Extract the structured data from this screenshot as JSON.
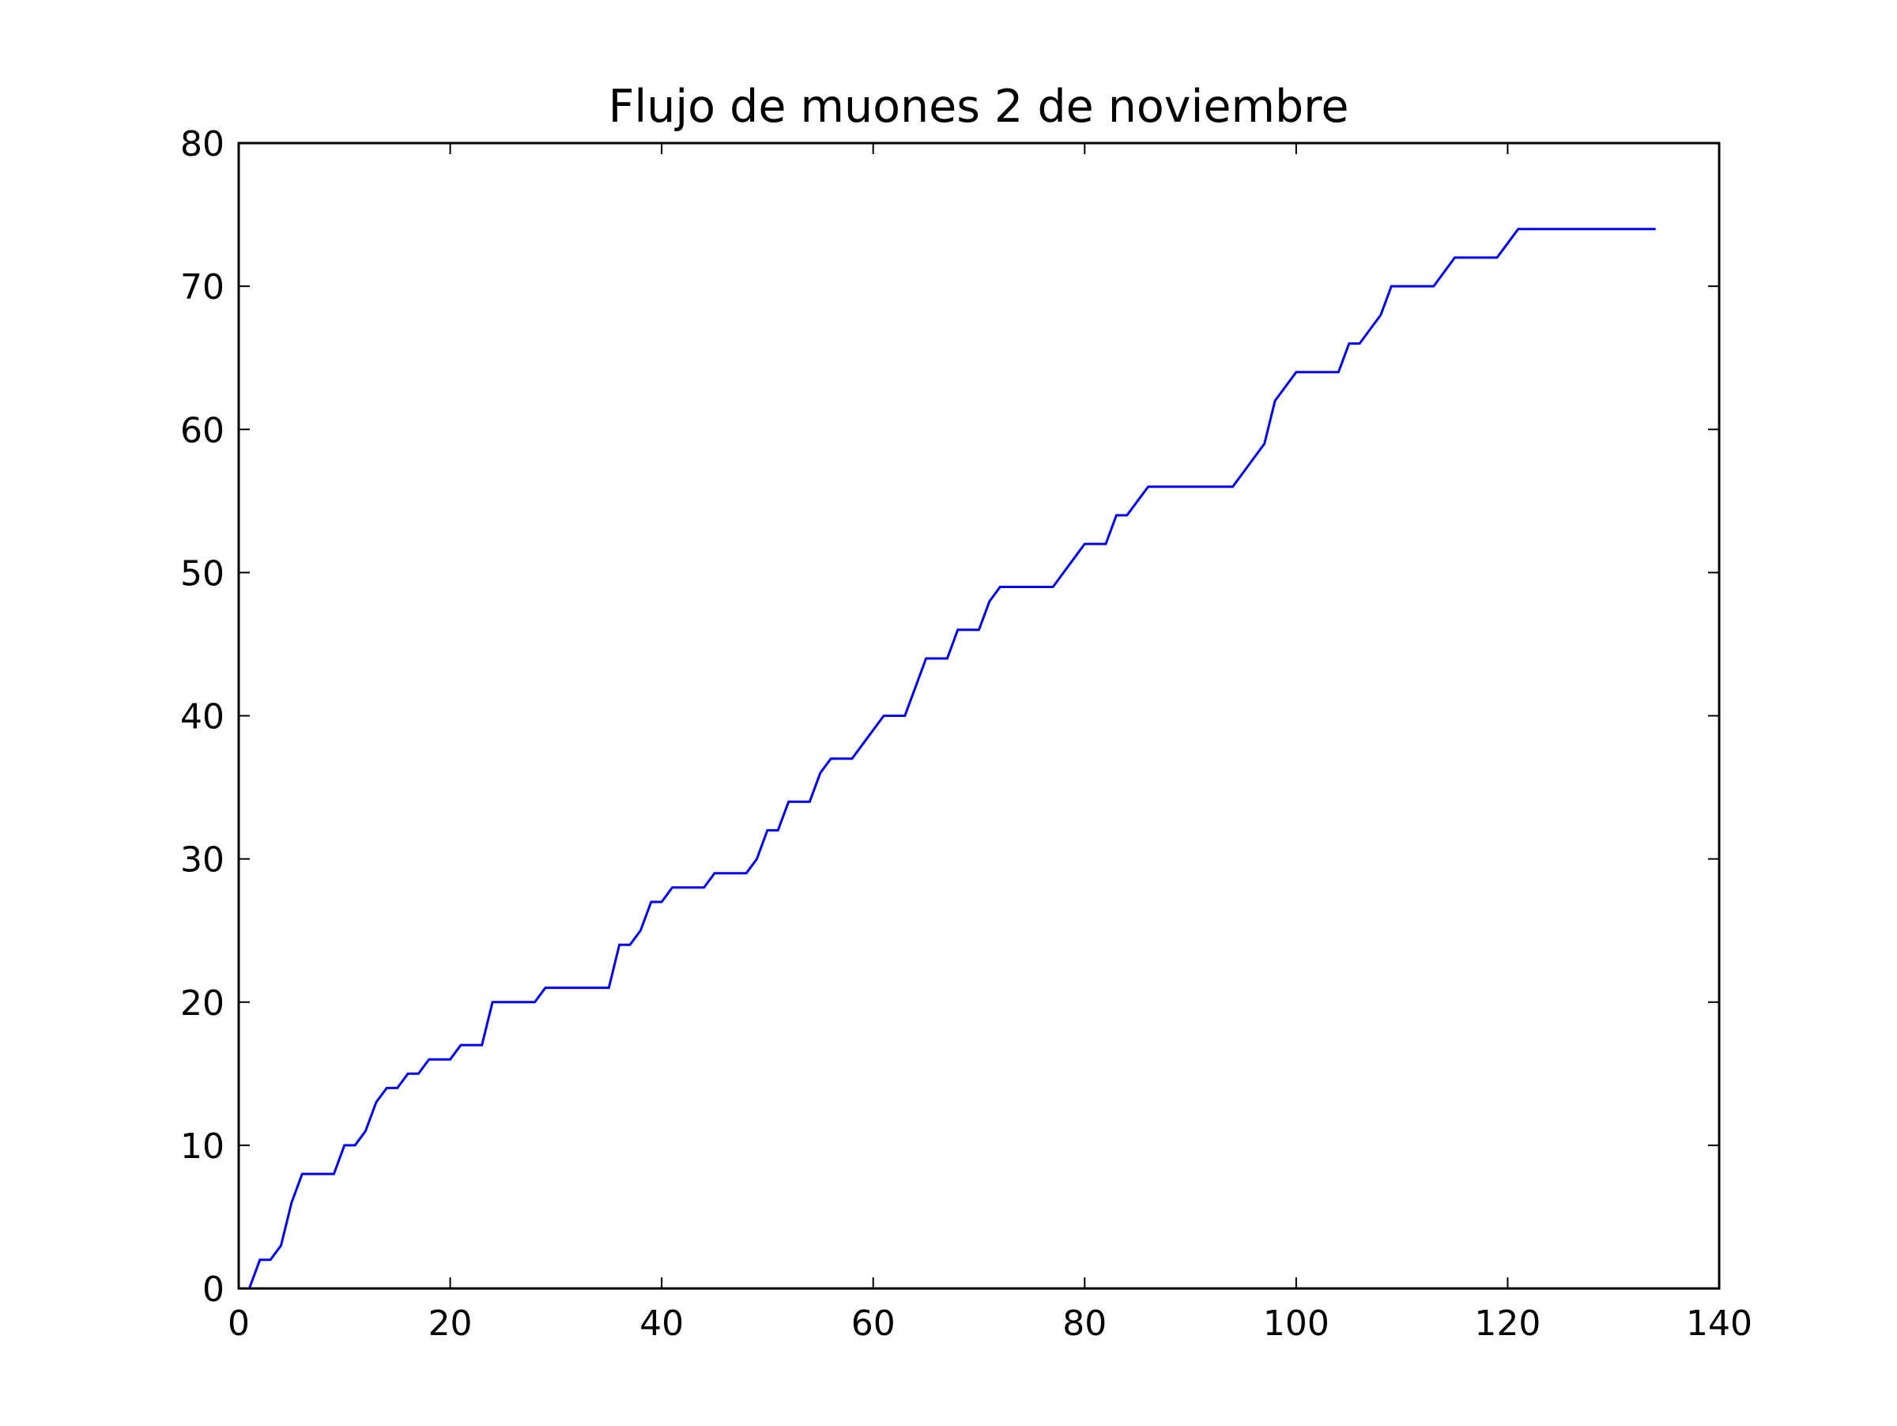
{
  "chart_data": {
    "type": "line",
    "title": "Flujo de muones 2 de noviembre",
    "xlabel": "",
    "ylabel": "",
    "xlim": [
      0,
      140
    ],
    "ylim": [
      0,
      80
    ],
    "xticks": [
      0,
      20,
      40,
      60,
      80,
      100,
      120,
      140
    ],
    "yticks": [
      0,
      10,
      20,
      30,
      40,
      50,
      60,
      70,
      80
    ],
    "xtick_labels": [
      "0",
      "20",
      "40",
      "60",
      "80",
      "100",
      "120",
      "140"
    ],
    "ytick_labels": [
      "0",
      "10",
      "20",
      "30",
      "40",
      "50",
      "60",
      "70",
      "80"
    ],
    "grid": false,
    "legend": "none",
    "series": [
      {
        "color": "#0000ff",
        "x": [
          1,
          2,
          3,
          4,
          5,
          6,
          7,
          8,
          9,
          10,
          11,
          12,
          13,
          14,
          15,
          16,
          17,
          18,
          19,
          20,
          21,
          22,
          23,
          24,
          25,
          26,
          27,
          28,
          29,
          30,
          31,
          32,
          33,
          34,
          35,
          36,
          37,
          38,
          39,
          40,
          41,
          42,
          43,
          44,
          45,
          46,
          47,
          48,
          49,
          50,
          51,
          52,
          53,
          54,
          55,
          56,
          57,
          58,
          59,
          60,
          61,
          62,
          63,
          64,
          65,
          66,
          67,
          68,
          69,
          70,
          71,
          72,
          73,
          74,
          75,
          76,
          77,
          78,
          79,
          80,
          81,
          82,
          83,
          84,
          85,
          86,
          87,
          88,
          89,
          90,
          91,
          92,
          93,
          94,
          95,
          96,
          97,
          98,
          99,
          100,
          101,
          102,
          103,
          104,
          105,
          106,
          107,
          108,
          109,
          110,
          111,
          112,
          113,
          114,
          115,
          116,
          117,
          118,
          119,
          120,
          121,
          122,
          123,
          124,
          125,
          126,
          127,
          128,
          129,
          130,
          131,
          132,
          133,
          134
        ],
        "y": [
          0,
          2,
          2,
          3,
          6,
          8,
          8,
          8,
          8,
          10,
          10,
          11,
          13,
          14,
          14,
          15,
          15,
          16,
          16,
          16,
          17,
          17,
          17,
          20,
          20,
          20,
          20,
          20,
          21,
          21,
          21,
          21,
          21,
          21,
          21,
          24,
          24,
          25,
          27,
          27,
          28,
          28,
          28,
          28,
          29,
          29,
          29,
          29,
          30,
          32,
          32,
          34,
          34,
          34,
          36,
          37,
          37,
          37,
          38,
          39,
          40,
          40,
          40,
          42,
          44,
          44,
          44,
          46,
          46,
          46,
          48,
          49,
          49,
          49,
          49,
          49,
          49,
          50,
          51,
          52,
          52,
          52,
          54,
          54,
          55,
          56,
          56,
          56,
          56,
          56,
          56,
          56,
          56,
          56,
          57,
          58,
          59,
          62,
          63,
          64,
          64,
          64,
          64,
          64,
          66,
          66,
          67,
          68,
          70,
          70,
          70,
          70,
          70,
          71,
          72,
          72,
          72,
          72,
          72,
          73,
          74,
          74,
          74,
          74,
          74,
          74,
          74,
          74,
          74,
          74,
          74,
          74,
          74,
          74
        ]
      }
    ]
  }
}
